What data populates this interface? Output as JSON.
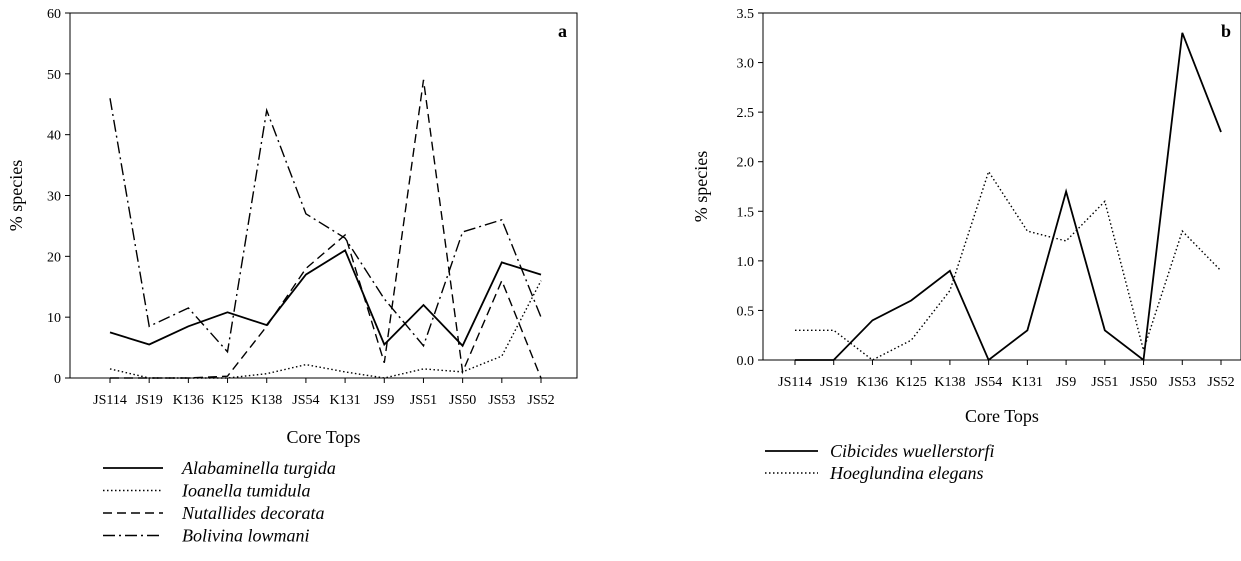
{
  "chart_data": [
    {
      "type": "line",
      "panel_label": "a",
      "xlabel": "Core Tops",
      "ylabel": "% species",
      "ylim": [
        0,
        60
      ],
      "yticks": [
        0,
        10,
        20,
        30,
        40,
        50,
        60
      ],
      "categories": [
        "JS114",
        "JS19",
        "K136",
        "K125",
        "K138",
        "JS54",
        "K131",
        "JS9",
        "JS51",
        "JS50",
        "JS53",
        "JS52"
      ],
      "legend_position": "below",
      "series": [
        {
          "name": "Alabaminella turgida",
          "style": "solid",
          "values": [
            7.5,
            5.5,
            8.5,
            10.8,
            8.7,
            17,
            21,
            5.5,
            12,
            5.3,
            19,
            17
          ]
        },
        {
          "name": "Ioanella tumidula",
          "style": "dotted",
          "values": [
            1.5,
            0,
            0,
            0,
            0.7,
            2.2,
            1,
            0,
            1.5,
            1,
            3.6,
            16
          ]
        },
        {
          "name": "Nutallides decorata",
          "style": "dashed",
          "values": [
            0,
            0,
            0,
            0.3,
            8.5,
            18,
            23.5,
            2.5,
            49,
            1,
            16,
            0
          ]
        },
        {
          "name": "Bolivina lowmani",
          "style": "dashdot",
          "values": [
            46,
            8.5,
            11.5,
            4.3,
            44,
            27,
            23,
            13,
            5.3,
            24,
            26,
            10
          ]
        }
      ]
    },
    {
      "type": "line",
      "panel_label": "b",
      "xlabel": "Core Tops",
      "ylabel": "% species",
      "ylim": [
        0,
        3.5
      ],
      "yticks": [
        "0.0",
        "0.5",
        "1.0",
        "1.5",
        "2.0",
        "2.5",
        "3.0",
        "3.5"
      ],
      "categories": [
        "JS114",
        "JS19",
        "K136",
        "K125",
        "K138",
        "JS54",
        "K131",
        "JS9",
        "JS51",
        "JS50",
        "JS53",
        "JS52"
      ],
      "legend_position": "below",
      "series": [
        {
          "name": "Cibicides wuellerstorfi",
          "style": "solid",
          "values": [
            0,
            0,
            0.4,
            0.6,
            0.9,
            0,
            0.3,
            1.7,
            0.3,
            0,
            3.3,
            2.3
          ]
        },
        {
          "name": "Hoeglundina elegans",
          "style": "dotted",
          "values": [
            0.3,
            0.3,
            0,
            0.2,
            0.7,
            1.9,
            1.3,
            1.2,
            1.6,
            0.1,
            1.3,
            0.9
          ]
        }
      ]
    }
  ]
}
